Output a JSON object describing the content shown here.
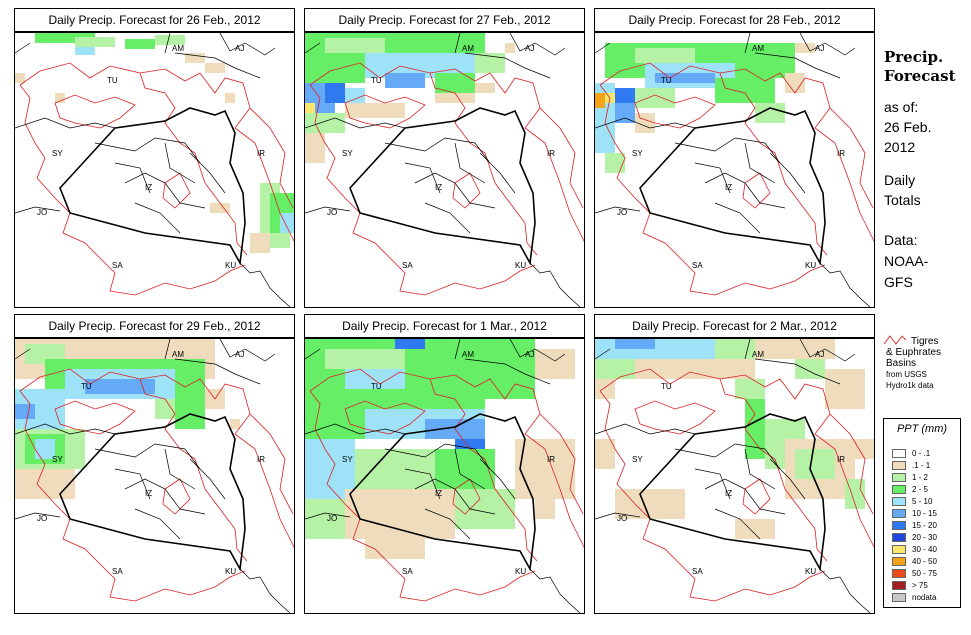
{
  "panels": [
    {
      "title": "Daily Precip. Forecast for  26 Feb., 2012"
    },
    {
      "title": "Daily Precip. Forecast for  27 Feb., 2012"
    },
    {
      "title": "Daily Precip. Forecast for  28 Feb., 2012"
    },
    {
      "title": "Daily Precip. Forecast for  29 Feb., 2012"
    },
    {
      "title": "Daily Precip. Forecast for  1 Mar., 2012"
    },
    {
      "title": "Daily Precip. Forecast for  2 Mar., 2012"
    }
  ],
  "country_labels": {
    "AM": "AM",
    "AJ": "AJ",
    "TU": "TU",
    "SY": "SY",
    "IR": "IR",
    "IZ": "IZ",
    "JO": "JO",
    "SA": "SA",
    "KU": "KU"
  },
  "sidebar": {
    "title_line1": "Precip.",
    "title_line2": "Forecast",
    "asof_line1": "as of:",
    "asof_line2": "26 Feb.",
    "asof_line3": "2012",
    "totals_line1": "Daily",
    "totals_line2": "Totals",
    "data_line1": "Data:",
    "data_line2": "NOAA-",
    "data_line3": "GFS"
  },
  "basins_legend": {
    "line1": "Tigres",
    "line2": "& Euphrates",
    "line3": "Basins",
    "line4": "from USGS",
    "line5": "Hydro1k data",
    "color": "#dd2222"
  },
  "ppt_legend": {
    "title": "PPT (mm)",
    "items": [
      {
        "label": "0 - .1",
        "color": "#ffffff"
      },
      {
        "label": ".1 - 1",
        "color": "#eedcbc"
      },
      {
        "label": "1 - 2",
        "color": "#b6f2a6"
      },
      {
        "label": "2 - 5",
        "color": "#66ee66"
      },
      {
        "label": "5 - 10",
        "color": "#9ee2f8"
      },
      {
        "label": "10 - 15",
        "color": "#64aaf6"
      },
      {
        "label": "15 - 20",
        "color": "#2f7af0"
      },
      {
        "label": "20 - 30",
        "color": "#1e46dc"
      },
      {
        "label": "30 - 40",
        "color": "#fae66a"
      },
      {
        "label": "40 - 50",
        "color": "#f4a218"
      },
      {
        "label": "50 - 75",
        "color": "#ee4a1a"
      },
      {
        "label": "> 75",
        "color": "#a31e1e"
      },
      {
        "label": "nodata",
        "color": "#c8c8c8"
      }
    ]
  }
}
